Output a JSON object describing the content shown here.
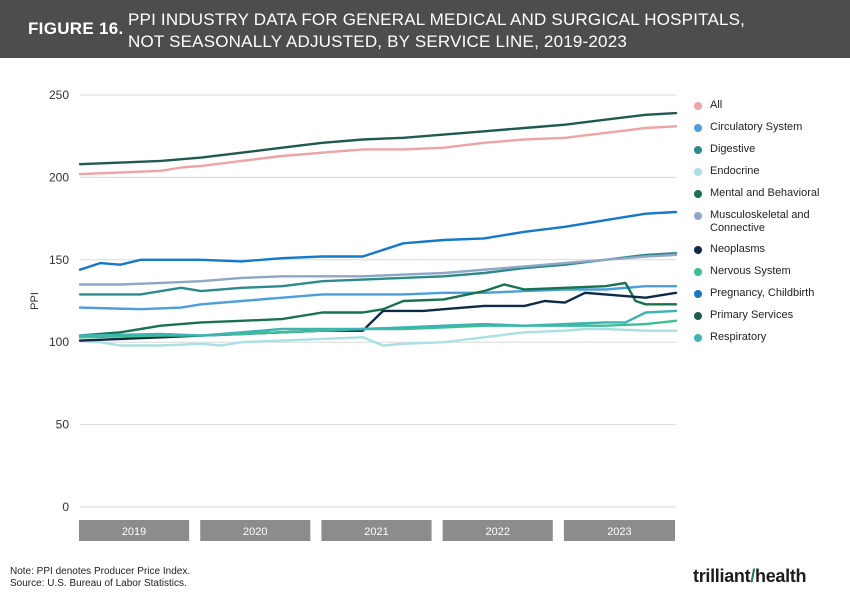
{
  "header": {
    "figure_label": "FIGURE 16.",
    "title_line1": "PPI INDUSTRY DATA FOR GENERAL MEDICAL AND SURGICAL HOSPITALS,",
    "title_line2": "NOT SEASONALLY ADJUSTED, BY SERVICE LINE, 2019-2023"
  },
  "footer": {
    "note": "Note: PPI denotes Producer Price Index.",
    "source": "Source: U.S. Bureau of Labor Statistics.",
    "brand_left": "trilliant",
    "brand_right": "health"
  },
  "colors": {
    "header_bg": "#4d4d4f",
    "year_band": "#8c8c8c",
    "gridline": "#d9d9d9"
  },
  "chart_data": {
    "type": "line",
    "title": "PPI INDUSTRY DATA FOR GENERAL MEDICAL AND SURGICAL HOSPITALS, NOT SEASONALLY ADJUSTED, BY SERVICE LINE, 2019-2023",
    "xlabel": "",
    "ylabel": "PPI",
    "ylim": [
      0,
      250
    ],
    "yticks": [
      0,
      50,
      100,
      150,
      200,
      250
    ],
    "grid": true,
    "legend_position": "right",
    "x_unit": "month index (0 = Jan 2019, 59 = Dec 2023)",
    "x_range": [
      0,
      59
    ],
    "year_labels": [
      "2019",
      "2020",
      "2021",
      "2022",
      "2023"
    ],
    "series": [
      {
        "name": "All",
        "color": "#eea3a6",
        "x": [
          0,
          4,
          8,
          10,
          12,
          16,
          20,
          24,
          28,
          32,
          36,
          40,
          44,
          48,
          52,
          56,
          59
        ],
        "values": [
          202,
          203,
          204,
          206,
          207,
          210,
          213,
          215,
          217,
          217,
          218,
          221,
          223,
          224,
          227,
          230,
          231
        ]
      },
      {
        "name": "Circulatory System",
        "color": "#4a9fdc",
        "x": [
          0,
          6,
          10,
          12,
          16,
          20,
          24,
          28,
          32,
          36,
          40,
          44,
          48,
          52,
          56,
          59
        ],
        "values": [
          121,
          120,
          121,
          123,
          125,
          127,
          129,
          129,
          129,
          130,
          130,
          131,
          132,
          132,
          134,
          134
        ]
      },
      {
        "name": "Digestive",
        "color": "#2b8a8a",
        "x": [
          0,
          6,
          10,
          12,
          16,
          20,
          24,
          28,
          32,
          36,
          40,
          44,
          48,
          52,
          56,
          59
        ],
        "values": [
          129,
          129,
          133,
          131,
          133,
          134,
          137,
          138,
          139,
          140,
          142,
          145,
          147,
          150,
          153,
          154
        ]
      },
      {
        "name": "Endocrine",
        "color": "#a8e0e3",
        "x": [
          0,
          2,
          4,
          8,
          12,
          14,
          16,
          20,
          24,
          28,
          30,
          32,
          36,
          40,
          44,
          48,
          50,
          52,
          56,
          59
        ],
        "values": [
          101,
          100,
          98,
          98,
          99,
          98,
          100,
          101,
          102,
          103,
          98,
          99,
          100,
          103,
          106,
          107,
          108,
          108,
          107,
          107
        ]
      },
      {
        "name": "Mental and Behavioral",
        "color": "#17734d",
        "x": [
          0,
          4,
          8,
          12,
          16,
          20,
          24,
          28,
          30,
          32,
          36,
          40,
          42,
          44,
          48,
          52,
          54,
          55,
          56,
          59
        ],
        "values": [
          104,
          106,
          110,
          112,
          113,
          114,
          118,
          118,
          120,
          125,
          126,
          131,
          135,
          132,
          133,
          134,
          136,
          125,
          123,
          123
        ]
      },
      {
        "name": "Musculoskeletal and Connective",
        "color": "#8fa6c6",
        "x": [
          0,
          4,
          8,
          12,
          16,
          20,
          24,
          28,
          32,
          36,
          40,
          44,
          48,
          52,
          56,
          59
        ],
        "values": [
          135,
          135,
          136,
          137,
          139,
          140,
          140,
          140,
          141,
          142,
          144,
          146,
          148,
          150,
          152,
          153
        ]
      },
      {
        "name": "Neoplasms",
        "color": "#0d2a47",
        "x": [
          0,
          8,
          12,
          16,
          20,
          24,
          28,
          30,
          34,
          36,
          40,
          44,
          46,
          48,
          50,
          52,
          56,
          59
        ],
        "values": [
          101,
          103,
          104,
          105,
          106,
          107,
          107,
          119,
          119,
          120,
          122,
          122,
          125,
          124,
          130,
          129,
          127,
          130
        ]
      },
      {
        "name": "Nervous System",
        "color": "#3dbf94",
        "x": [
          0,
          8,
          12,
          16,
          20,
          24,
          28,
          32,
          36,
          40,
          44,
          48,
          52,
          56,
          59
        ],
        "values": [
          103,
          104,
          104,
          105,
          106,
          107,
          108,
          108,
          109,
          110,
          110,
          110,
          110,
          111,
          113
        ]
      },
      {
        "name": "Pregnancy, Childbirth",
        "color": "#1479c8",
        "x": [
          0,
          2,
          4,
          6,
          8,
          12,
          16,
          20,
          24,
          28,
          32,
          36,
          40,
          44,
          48,
          52,
          56,
          59
        ],
        "values": [
          144,
          148,
          147,
          150,
          150,
          150,
          149,
          151,
          152,
          152,
          160,
          162,
          163,
          167,
          170,
          174,
          178,
          179
        ]
      },
      {
        "name": "Primary Services",
        "color": "#1f5a4f",
        "x": [
          0,
          4,
          8,
          12,
          16,
          20,
          24,
          28,
          32,
          36,
          40,
          44,
          48,
          52,
          56,
          59
        ],
        "values": [
          208,
          209,
          210,
          212,
          215,
          218,
          221,
          223,
          224,
          226,
          228,
          230,
          232,
          235,
          238,
          239
        ]
      },
      {
        "name": "Respiratory",
        "color": "#3db3b3",
        "x": [
          0,
          8,
          12,
          16,
          20,
          24,
          28,
          32,
          36,
          40,
          44,
          48,
          52,
          54,
          56,
          59
        ],
        "values": [
          104,
          105,
          104,
          106,
          108,
          108,
          108,
          109,
          110,
          111,
          110,
          111,
          112,
          112,
          118,
          119
        ]
      }
    ]
  }
}
